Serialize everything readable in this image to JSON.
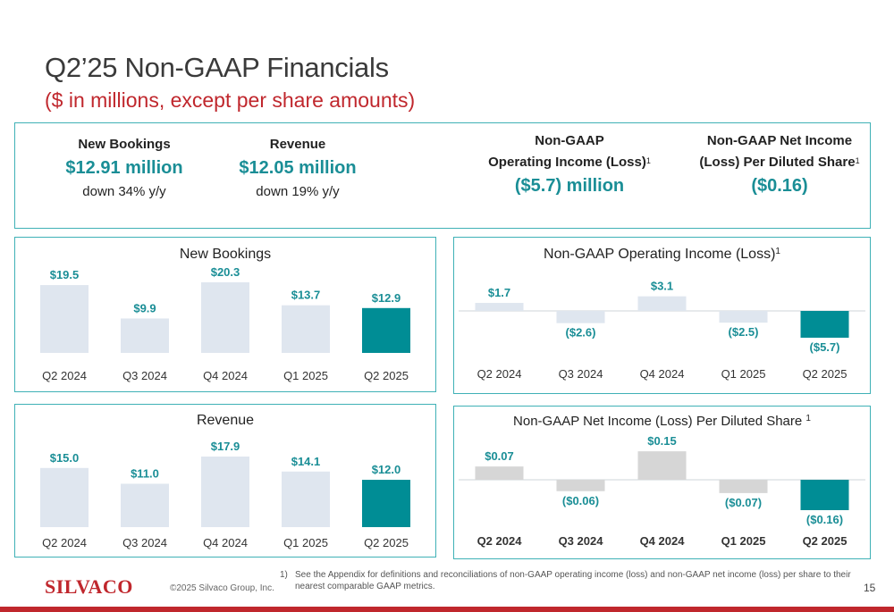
{
  "header": {
    "title": "Q2’25 Non-GAAP Financials",
    "subtitle": "($ in millions, except per share amounts)"
  },
  "kpis": [
    {
      "label": "New Bookings",
      "value": "$12.91 million",
      "sub": "down 34% y/y"
    },
    {
      "label": "Revenue",
      "value": "$12.05 million",
      "sub": "down 19% y/y"
    },
    {
      "label_line1": "Non-GAAP",
      "label_line2": "Operating Income (Loss)",
      "footnote_ref": "1",
      "value": "($5.7) million"
    },
    {
      "label_line1": "Non-GAAP Net Income",
      "label_line2": "(Loss) Per Diluted Share",
      "footnote_ref": "1",
      "value": "($0.16)"
    }
  ],
  "colors": {
    "accent": "#1a8e96",
    "highlight_bar": "#008d95",
    "light_bar": "#dfe6ef",
    "gray_bar": "#d6d6d6",
    "panel_border": "#3fb1b6",
    "brand_red": "#c0272d"
  },
  "chart_data": [
    {
      "type": "bar",
      "title": "New Bookings",
      "categories": [
        "Q2 2024",
        "Q3 2024",
        "Q4 2024",
        "Q1 2025",
        "Q2 2025"
      ],
      "values": [
        19.5,
        9.9,
        20.3,
        13.7,
        12.9
      ],
      "labels": [
        "$19.5",
        "$9.9",
        "$20.3",
        "$13.7",
        "$12.9"
      ],
      "highlight_index": 4,
      "ylim": [
        0,
        25
      ],
      "grid": false
    },
    {
      "type": "bar",
      "title": "Non-GAAP Operating Income (Loss)",
      "title_footnote": "1",
      "categories": [
        "Q2 2024",
        "Q3 2024",
        "Q4 2024",
        "Q1 2025",
        "Q2 2025"
      ],
      "values": [
        1.7,
        -2.6,
        3.1,
        -2.5,
        -5.7
      ],
      "labels": [
        "$1.7",
        "($2.6)",
        "$3.1",
        "($2.5)",
        "($5.7)"
      ],
      "highlight_index": 4,
      "ylim": [
        -6,
        4
      ],
      "grid": false
    },
    {
      "type": "bar",
      "title": "Revenue",
      "categories": [
        "Q2 2024",
        "Q3 2024",
        "Q4 2024",
        "Q1 2025",
        "Q2 2025"
      ],
      "values": [
        15.0,
        11.0,
        17.9,
        14.1,
        12.0
      ],
      "labels": [
        "$15.0",
        "$11.0",
        "$17.9",
        "$14.1",
        "$12.0"
      ],
      "highlight_index": 4,
      "ylim": [
        0,
        22
      ],
      "grid": false
    },
    {
      "type": "bar",
      "title": "Non-GAAP Net Income (Loss) Per Diluted Share",
      "title_footnote": "1",
      "categories": [
        "Q2 2024",
        "Q3 2024",
        "Q4 2024",
        "Q1 2025",
        "Q2 2025"
      ],
      "values": [
        0.07,
        -0.06,
        0.15,
        -0.07,
        -0.16
      ],
      "labels": [
        "$0.07",
        "($0.06)",
        "$0.15",
        "($0.07)",
        "($0.16)"
      ],
      "highlight_index": 4,
      "ylim": [
        -0.18,
        0.18
      ],
      "grid": false
    }
  ],
  "footer": {
    "logo": "SILVACO",
    "copyright": "©2025 Silvaco Group, Inc.",
    "footnote_num": "1)",
    "footnote_text": "See the Appendix for definitions and reconciliations of non-GAAP operating income (loss) and non-GAAP net income (loss) per share to their nearest comparable GAAP metrics.",
    "page_number": "15"
  }
}
